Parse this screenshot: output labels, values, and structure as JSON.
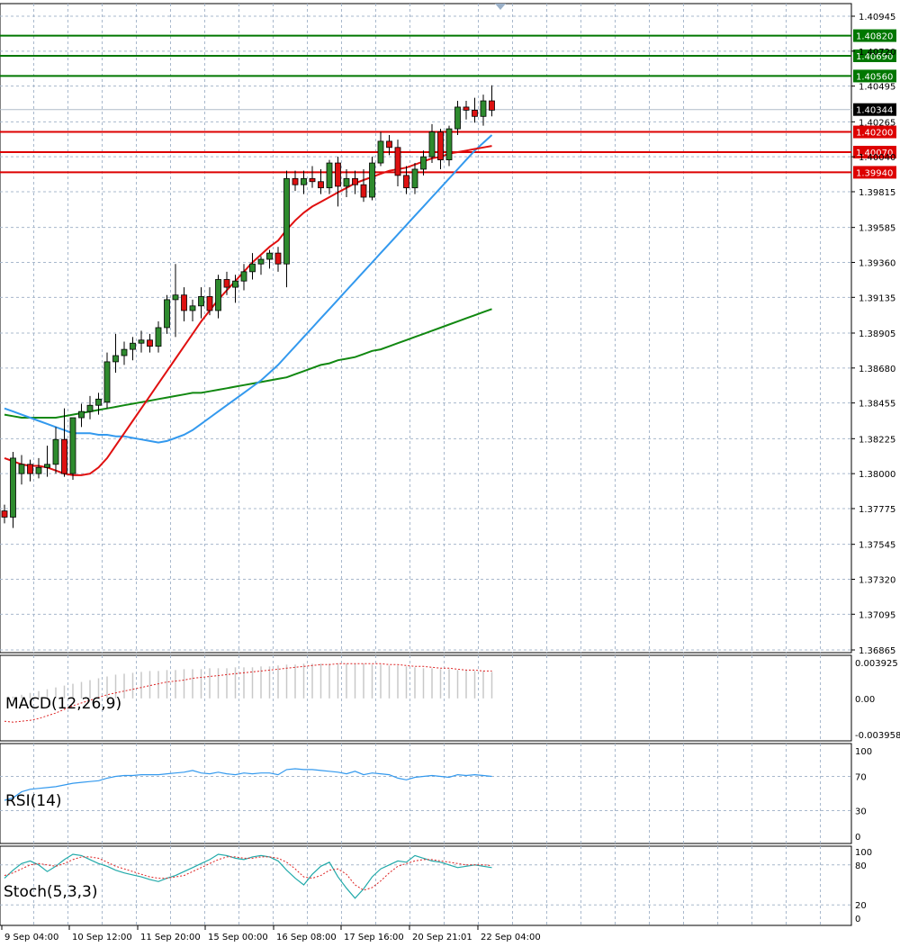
{
  "chart_data": {
    "type": "candlestick",
    "price_axis": {
      "min": 1.36865,
      "max": 1.40945,
      "ticks": [
        "1.40945",
        "1.40720",
        "1.40495",
        "1.40265",
        "1.40040",
        "1.39815",
        "1.39585",
        "1.39360",
        "1.39135",
        "1.38905",
        "1.38680",
        "1.38455",
        "1.38225",
        "1.38000",
        "1.37775",
        "1.37545",
        "1.37320",
        "1.37095",
        "1.36865"
      ]
    },
    "time_labels": [
      "9 Sep 04:00",
      "10 Sep 12:00",
      "11 Sep 20:00",
      "15 Sep 00:00",
      "16 Sep 08:00",
      "17 Sep 16:00",
      "20 Sep 21:01",
      "22 Sep 04:00"
    ],
    "current_price": "1.40344",
    "levels": [
      {
        "value": "1.40820",
        "color": "#007700"
      },
      {
        "value": "1.40690",
        "color": "#007700"
      },
      {
        "value": "1.40560",
        "color": "#007700"
      },
      {
        "value": "1.40200",
        "color": "#dd0000"
      },
      {
        "value": "1.40070",
        "color": "#dd0000"
      },
      {
        "value": "1.39940",
        "color": "#dd0000"
      }
    ],
    "candles": [
      {
        "o": 1.3776,
        "h": 1.378,
        "l": 1.3768,
        "c": 1.3772
      },
      {
        "o": 1.3772,
        "h": 1.3814,
        "l": 1.3765,
        "c": 1.381
      },
      {
        "o": 1.38,
        "h": 1.3812,
        "l": 1.3793,
        "c": 1.3806
      },
      {
        "o": 1.3806,
        "h": 1.3809,
        "l": 1.3795,
        "c": 1.38
      },
      {
        "o": 1.38,
        "h": 1.381,
        "l": 1.3797,
        "c": 1.3804
      },
      {
        "o": 1.3804,
        "h": 1.3818,
        "l": 1.3798,
        "c": 1.3806
      },
      {
        "o": 1.3806,
        "h": 1.383,
        "l": 1.38,
        "c": 1.3822
      },
      {
        "o": 1.3822,
        "h": 1.3842,
        "l": 1.3798,
        "c": 1.38
      },
      {
        "o": 1.38,
        "h": 1.3835,
        "l": 1.3796,
        "c": 1.3836
      },
      {
        "o": 1.3836,
        "h": 1.3845,
        "l": 1.383,
        "c": 1.384
      },
      {
        "o": 1.384,
        "h": 1.385,
        "l": 1.3835,
        "c": 1.3844
      },
      {
        "o": 1.3844,
        "h": 1.3852,
        "l": 1.3838,
        "c": 1.3848
      },
      {
        "o": 1.3846,
        "h": 1.3878,
        "l": 1.3842,
        "c": 1.3872
      },
      {
        "o": 1.3872,
        "h": 1.389,
        "l": 1.3865,
        "c": 1.3876
      },
      {
        "o": 1.3876,
        "h": 1.3885,
        "l": 1.387,
        "c": 1.388
      },
      {
        "o": 1.388,
        "h": 1.3888,
        "l": 1.3873,
        "c": 1.3884
      },
      {
        "o": 1.3884,
        "h": 1.3892,
        "l": 1.3878,
        "c": 1.3886
      },
      {
        "o": 1.3886,
        "h": 1.389,
        "l": 1.3878,
        "c": 1.3882
      },
      {
        "o": 1.3882,
        "h": 1.3898,
        "l": 1.3878,
        "c": 1.3894
      },
      {
        "o": 1.3894,
        "h": 1.3915,
        "l": 1.389,
        "c": 1.3912
      },
      {
        "o": 1.3912,
        "h": 1.3935,
        "l": 1.3888,
        "c": 1.3915
      },
      {
        "o": 1.3915,
        "h": 1.392,
        "l": 1.3898,
        "c": 1.3905
      },
      {
        "o": 1.3905,
        "h": 1.3912,
        "l": 1.3898,
        "c": 1.3908
      },
      {
        "o": 1.3908,
        "h": 1.392,
        "l": 1.39,
        "c": 1.3914
      },
      {
        "o": 1.3914,
        "h": 1.392,
        "l": 1.3902,
        "c": 1.3905
      },
      {
        "o": 1.3905,
        "h": 1.3928,
        "l": 1.39,
        "c": 1.3925
      },
      {
        "o": 1.3925,
        "h": 1.393,
        "l": 1.3915,
        "c": 1.392
      },
      {
        "o": 1.392,
        "h": 1.3928,
        "l": 1.391,
        "c": 1.3924
      },
      {
        "o": 1.3924,
        "h": 1.3935,
        "l": 1.3918,
        "c": 1.393
      },
      {
        "o": 1.393,
        "h": 1.3942,
        "l": 1.3925,
        "c": 1.3935
      },
      {
        "o": 1.3935,
        "h": 1.394,
        "l": 1.3928,
        "c": 1.3938
      },
      {
        "o": 1.3938,
        "h": 1.3944,
        "l": 1.3932,
        "c": 1.3942
      },
      {
        "o": 1.3942,
        "h": 1.3946,
        "l": 1.393,
        "c": 1.3935
      },
      {
        "o": 1.3935,
        "h": 1.3995,
        "l": 1.392,
        "c": 1.399
      },
      {
        "o": 1.399,
        "h": 1.3995,
        "l": 1.3982,
        "c": 1.3986
      },
      {
        "o": 1.3986,
        "h": 1.3995,
        "l": 1.398,
        "c": 1.399
      },
      {
        "o": 1.399,
        "h": 1.3998,
        "l": 1.3984,
        "c": 1.3988
      },
      {
        "o": 1.3988,
        "h": 1.3996,
        "l": 1.398,
        "c": 1.3984
      },
      {
        "o": 1.3984,
        "h": 1.4002,
        "l": 1.398,
        "c": 1.4
      },
      {
        "o": 1.4,
        "h": 1.4004,
        "l": 1.3972,
        "c": 1.3985
      },
      {
        "o": 1.3985,
        "h": 1.3996,
        "l": 1.3978,
        "c": 1.399
      },
      {
        "o": 1.399,
        "h": 1.3995,
        "l": 1.398,
        "c": 1.3986
      },
      {
        "o": 1.3986,
        "h": 1.3996,
        "l": 1.3975,
        "c": 1.3978
      },
      {
        "o": 1.3978,
        "h": 1.4004,
        "l": 1.3976,
        "c": 1.4
      },
      {
        "o": 1.4,
        "h": 1.402,
        "l": 1.3998,
        "c": 1.4014
      },
      {
        "o": 1.4014,
        "h": 1.4018,
        "l": 1.4005,
        "c": 1.401
      },
      {
        "o": 1.401,
        "h": 1.4015,
        "l": 1.3985,
        "c": 1.3992
      },
      {
        "o": 1.3992,
        "h": 1.3998,
        "l": 1.398,
        "c": 1.3984
      },
      {
        "o": 1.3984,
        "h": 1.4,
        "l": 1.398,
        "c": 1.3996
      },
      {
        "o": 1.3996,
        "h": 1.4008,
        "l": 1.3992,
        "c": 1.4004
      },
      {
        "o": 1.4004,
        "h": 1.4025,
        "l": 1.4,
        "c": 1.402
      },
      {
        "o": 1.402,
        "h": 1.4022,
        "l": 1.3996,
        "c": 1.4002
      },
      {
        "o": 1.4002,
        "h": 1.4024,
        "l": 1.3998,
        "c": 1.4022
      },
      {
        "o": 1.4022,
        "h": 1.404,
        "l": 1.4018,
        "c": 1.4036
      },
      {
        "o": 1.4036,
        "h": 1.404,
        "l": 1.4028,
        "c": 1.4034
      },
      {
        "o": 1.4034,
        "h": 1.4042,
        "l": 1.4026,
        "c": 1.403
      },
      {
        "o": 1.403,
        "h": 1.4044,
        "l": 1.4024,
        "c": 1.404
      },
      {
        "o": 1.404,
        "h": 1.405,
        "l": 1.403,
        "c": 1.4034
      }
    ],
    "ma_red": [
      1.381,
      1.3808,
      1.3806,
      1.3805,
      1.3805,
      1.3804,
      1.3802,
      1.38,
      1.3799,
      1.3799,
      1.38,
      1.3804,
      1.381,
      1.3818,
      1.3826,
      1.3834,
      1.3842,
      1.385,
      1.3858,
      1.3866,
      1.3874,
      1.3882,
      1.389,
      1.3898,
      1.3905,
      1.3912,
      1.3918,
      1.3924,
      1.393,
      1.3936,
      1.3941,
      1.3946,
      1.395,
      1.3957,
      1.3963,
      1.3968,
      1.3972,
      1.3975,
      1.3978,
      1.3981,
      1.3984,
      1.3987,
      1.3989,
      1.3991,
      1.3993,
      1.3995,
      1.3996,
      1.3997,
      1.3999,
      1.4001,
      1.4003,
      1.4004,
      1.4006,
      1.4007,
      1.4008,
      1.4009,
      1.401,
      1.4011
    ],
    "ma_blue": [
      1.3842,
      1.384,
      1.3838,
      1.3836,
      1.3834,
      1.3832,
      1.383,
      1.3828,
      1.3826,
      1.3826,
      1.3826,
      1.3825,
      1.3825,
      1.3824,
      1.3824,
      1.3823,
      1.3822,
      1.3821,
      1.382,
      1.3821,
      1.3823,
      1.3825,
      1.3828,
      1.3832,
      1.3836,
      1.384,
      1.3844,
      1.3848,
      1.3852,
      1.3856,
      1.386,
      1.3865,
      1.387,
      1.3876,
      1.3882,
      1.3888,
      1.3894,
      1.39,
      1.3906,
      1.3912,
      1.3918,
      1.3924,
      1.393,
      1.3936,
      1.3942,
      1.3948,
      1.3954,
      1.396,
      1.3966,
      1.3972,
      1.3978,
      1.3984,
      1.399,
      1.3996,
      1.4002,
      1.4008,
      1.4013,
      1.4018
    ],
    "ma_green": [
      1.3838,
      1.3837,
      1.3836,
      1.3836,
      1.3836,
      1.3836,
      1.3836,
      1.3837,
      1.3838,
      1.3839,
      1.384,
      1.3841,
      1.3842,
      1.3843,
      1.3844,
      1.3845,
      1.3846,
      1.3847,
      1.3848,
      1.3849,
      1.385,
      1.3851,
      1.3852,
      1.3852,
      1.3853,
      1.3854,
      1.3855,
      1.3856,
      1.3857,
      1.3858,
      1.3859,
      1.386,
      1.3861,
      1.3862,
      1.3864,
      1.3866,
      1.3868,
      1.387,
      1.3871,
      1.3873,
      1.3874,
      1.3875,
      1.3877,
      1.3879,
      1.388,
      1.3882,
      1.3884,
      1.3886,
      1.3888,
      1.389,
      1.3892,
      1.3894,
      1.3896,
      1.3898,
      1.39,
      1.3902,
      1.3904,
      1.3906
    ],
    "macd": {
      "label": "MACD(12,26,9)",
      "ticks": [
        "0.003925",
        "0.00",
        "-0.003958"
      ],
      "min": -0.003958,
      "max": 0.003925,
      "hist": [
        0.0,
        0.0002,
        0.0004,
        0.0006,
        0.0008,
        0.001,
        0.0012,
        0.0014,
        0.0016,
        0.0018,
        0.002,
        0.0022,
        0.0024,
        0.0026,
        0.0027,
        0.0028,
        0.0029,
        0.003,
        0.003,
        0.0031,
        0.0031,
        0.0032,
        0.0032,
        0.0032,
        0.0033,
        0.0033,
        0.0033,
        0.0034,
        0.0034,
        0.0034,
        0.0035,
        0.0035,
        0.0036,
        0.0037,
        0.0037,
        0.0038,
        0.0038,
        0.0038,
        0.0038,
        0.0038,
        0.0038,
        0.0038,
        0.0038,
        0.0037,
        0.0037,
        0.0036,
        0.0036,
        0.0035,
        0.0034,
        0.0033,
        0.0033,
        0.0032,
        0.0032,
        0.0031,
        0.0031,
        0.003,
        0.003,
        0.0029
      ],
      "signal": [
        -0.0025,
        -0.0026,
        -0.0025,
        -0.0024,
        -0.0022,
        -0.0019,
        -0.0016,
        -0.0012,
        -0.0008,
        -0.0005,
        -0.0002,
        0.0001,
        0.0004,
        0.0006,
        0.0008,
        0.001,
        0.0012,
        0.0014,
        0.0016,
        0.0018,
        0.0019,
        0.002,
        0.0022,
        0.0023,
        0.0024,
        0.0025,
        0.0026,
        0.0027,
        0.0028,
        0.0029,
        0.003,
        0.0031,
        0.0032,
        0.0033,
        0.0034,
        0.0035,
        0.0036,
        0.0037,
        0.0037,
        0.0038,
        0.0038,
        0.0038,
        0.0038,
        0.0038,
        0.0038,
        0.0037,
        0.0037,
        0.0036,
        0.0035,
        0.0035,
        0.0034,
        0.0033,
        0.0033,
        0.0032,
        0.0031,
        0.0031,
        0.003,
        0.003
      ]
    },
    "rsi": {
      "label": "RSI(14)",
      "ticks": [
        "100",
        "70",
        "30",
        "0"
      ],
      "values": [
        42,
        45,
        52,
        55,
        56,
        57,
        58,
        60,
        62,
        63,
        64,
        65,
        68,
        70,
        71,
        71,
        72,
        72,
        72,
        73,
        74,
        75,
        77,
        74,
        73,
        75,
        73,
        72,
        74,
        73,
        74,
        74,
        72,
        78,
        79,
        78,
        78,
        77,
        76,
        75,
        73,
        76,
        72,
        74,
        73,
        72,
        68,
        66,
        69,
        70,
        71,
        70,
        69,
        72,
        71,
        72,
        71,
        70
      ]
    },
    "stoch": {
      "label": "Stoch(5,3,3)",
      "ticks": [
        "100",
        "80",
        "20",
        "0"
      ],
      "k": [
        60,
        72,
        82,
        86,
        80,
        70,
        78,
        88,
        96,
        94,
        88,
        82,
        78,
        72,
        68,
        65,
        62,
        58,
        55,
        60,
        64,
        70,
        76,
        82,
        88,
        96,
        94,
        90,
        88,
        92,
        94,
        92,
        86,
        72,
        60,
        50,
        66,
        78,
        84,
        62,
        45,
        30,
        44,
        62,
        74,
        80,
        86,
        84,
        94,
        90,
        86,
        84,
        80,
        76,
        78,
        80,
        78,
        76
      ],
      "d": [
        64,
        68,
        74,
        80,
        82,
        80,
        78,
        82,
        88,
        92,
        92,
        90,
        84,
        78,
        74,
        70,
        66,
        62,
        60,
        60,
        62,
        64,
        70,
        76,
        82,
        88,
        92,
        92,
        90,
        90,
        92,
        92,
        90,
        84,
        74,
        62,
        60,
        64,
        72,
        74,
        66,
        50,
        42,
        46,
        56,
        68,
        78,
        82,
        86,
        88,
        88,
        86,
        84,
        82,
        80,
        80,
        80,
        79
      ]
    }
  }
}
